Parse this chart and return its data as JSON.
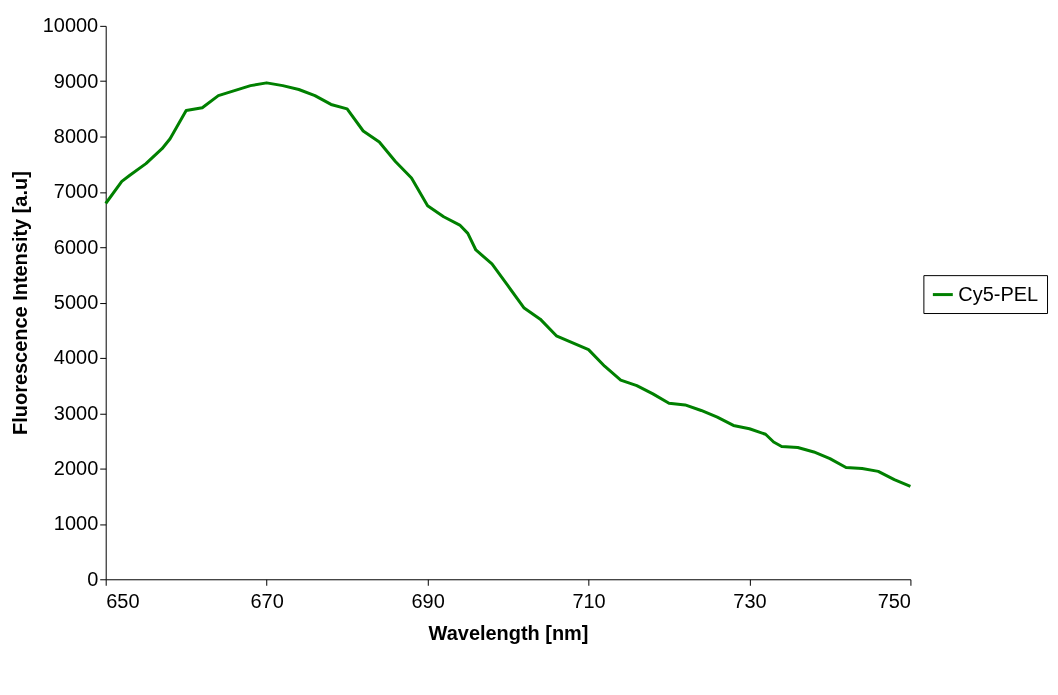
{
  "chart_data": {
    "type": "line",
    "xlabel": "Wavelength [nm]",
    "ylabel": "Fluorescence Intensity [a.u]",
    "x": [
      650,
      652,
      653,
      655,
      657,
      658,
      660,
      662,
      664,
      666,
      668,
      670,
      672,
      674,
      676,
      678,
      680,
      682,
      684,
      686,
      688,
      690,
      692,
      694,
      695,
      696,
      698,
      700,
      702,
      704,
      706,
      710,
      712,
      714,
      716,
      718,
      720,
      722,
      724,
      726,
      728,
      730,
      732,
      733,
      734,
      736,
      738,
      740,
      742,
      744,
      746,
      748,
      750
    ],
    "series": [
      {
        "name": "Cy5-PEL",
        "color": "#008000",
        "values": [
          6790,
          7190,
          7300,
          7510,
          7780,
          7960,
          8470,
          8520,
          8740,
          8830,
          8920,
          8970,
          8920,
          8850,
          8740,
          8580,
          8500,
          8100,
          7900,
          7550,
          7250,
          6750,
          6550,
          6400,
          6250,
          5950,
          5700,
          5300,
          4900,
          4700,
          4400,
          4150,
          3850,
          3600,
          3500,
          3350,
          3180,
          3150,
          3050,
          2930,
          2780,
          2720,
          2620,
          2480,
          2400,
          2380,
          2300,
          2180,
          2020,
          2000,
          1950,
          1800,
          1680
        ]
      }
    ],
    "xlim": [
      650,
      750
    ],
    "xticks": [
      650,
      670,
      690,
      710,
      730,
      750
    ],
    "ylim": [
      0,
      10000
    ],
    "yticks": [
      0,
      1000,
      2000,
      3000,
      4000,
      5000,
      6000,
      7000,
      8000,
      9000,
      10000
    ],
    "grid": false,
    "legend": "right",
    "marker": "none",
    "line_style": "solid"
  }
}
